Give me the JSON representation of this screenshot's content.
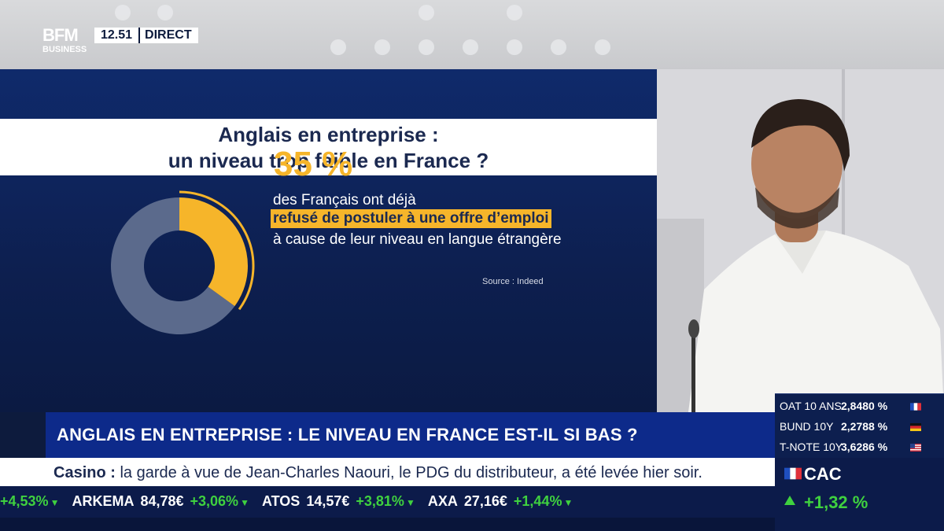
{
  "channel": {
    "logo_line1": "BFM",
    "logo_line2": "BUSINESS",
    "time": "12.51",
    "live_label": "DIRECT"
  },
  "infographic": {
    "title_line1": "Anglais en entreprise :",
    "title_line2": "un niveau trop faible en France ?",
    "percent": "35 %",
    "percent_value": 35,
    "text_line1": "des Français ont déjà",
    "text_highlight": "refusé de postuler à une offre d’emploi",
    "text_line3": "à cause de leur niveau en langue étrangère",
    "source": "Source : Indeed",
    "colors": {
      "accent": "#f6b52a",
      "donut_rest": "#5b6a8c",
      "panel": "#0f2a6b"
    }
  },
  "headline": "ANGLAIS EN ENTREPRISE : LE NIVEAU EN FRANCE EST-IL SI BAS ?",
  "news_ticker": {
    "topic": "Casino :",
    "text": "la garde à vue de Jean-Charles Naouri, le PDG du distributeur, a été levée hier soir."
  },
  "stock_ticker": [
    {
      "text": "+4,53%",
      "trend": "up"
    },
    {
      "text": "ARKEMA",
      "trend": "name"
    },
    {
      "text": "84,78€",
      "trend": "price"
    },
    {
      "text": "+3,06%",
      "trend": "up"
    },
    {
      "text": "ATOS",
      "trend": "name"
    },
    {
      "text": "14,57€",
      "trend": "price"
    },
    {
      "text": "+3,81%",
      "trend": "up"
    },
    {
      "text": "AXA",
      "trend": "name"
    },
    {
      "text": "27,16€",
      "trend": "price"
    },
    {
      "text": "+1,44%",
      "trend": "up"
    }
  ],
  "markets": [
    {
      "name": "OAT 10 ANS",
      "value": "2,8480 %",
      "flag": "france-flag"
    },
    {
      "name": "BUND 10Y",
      "value": "2,2788 %",
      "flag": "germany-flag"
    },
    {
      "name": "T-NOTE 10Y",
      "value": "3,6286 %",
      "flag": "usa-flag"
    }
  ],
  "index": {
    "name": "CAC",
    "change": "+1,32 %",
    "flag": "france-flag"
  }
}
